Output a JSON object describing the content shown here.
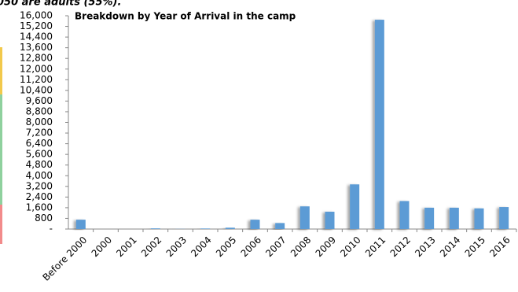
{
  "chart_data": {
    "type": "bar",
    "annotation": "050 are adults (55%).",
    "title": "Breakdown by Year of Arrival in the camp",
    "categories": [
      "Before 2000",
      "2000",
      "2001",
      "2002",
      "2003",
      "2004",
      "2005",
      "2006",
      "2007",
      "2008",
      "2009",
      "2010",
      "2011",
      "2012",
      "2013",
      "2014",
      "2015",
      "2016"
    ],
    "values": [
      700,
      0,
      0,
      50,
      10,
      40,
      100,
      700,
      450,
      1700,
      1300,
      3350,
      15700,
      2100,
      1600,
      1600,
      1550,
      1650
    ],
    "color": "#5b9bd5",
    "ylim": [
      0,
      16000
    ],
    "yticks": [
      {
        "value": 0,
        "label": "-"
      },
      800,
      {
        "value": 1600,
        "label": "1,600"
      },
      {
        "value": 2400,
        "label": "2,400"
      },
      {
        "value": 3200,
        "label": "3,200"
      },
      {
        "value": 4000,
        "label": "4,000"
      },
      {
        "value": 4800,
        "label": "4,800"
      },
      {
        "value": 5600,
        "label": "5,600"
      },
      {
        "value": 6400,
        "label": "6,400"
      },
      {
        "value": 7200,
        "label": "7,200"
      },
      {
        "value": 8000,
        "label": "8,000"
      },
      {
        "value": 8800,
        "label": "8,800"
      },
      {
        "value": 9600,
        "label": "9,600"
      },
      {
        "value": 10400,
        "label": "10,400"
      },
      {
        "value": 11200,
        "label": "11,200"
      },
      {
        "value": 12000,
        "label": "12,000"
      },
      {
        "value": 12800,
        "label": "12,800"
      },
      {
        "value": 13600,
        "label": "13,600"
      },
      {
        "value": 14400,
        "label": "14,400"
      },
      {
        "value": 15200,
        "label": "15,200"
      },
      {
        "value": 16000,
        "label": "16,000"
      }
    ],
    "grid": false
  }
}
